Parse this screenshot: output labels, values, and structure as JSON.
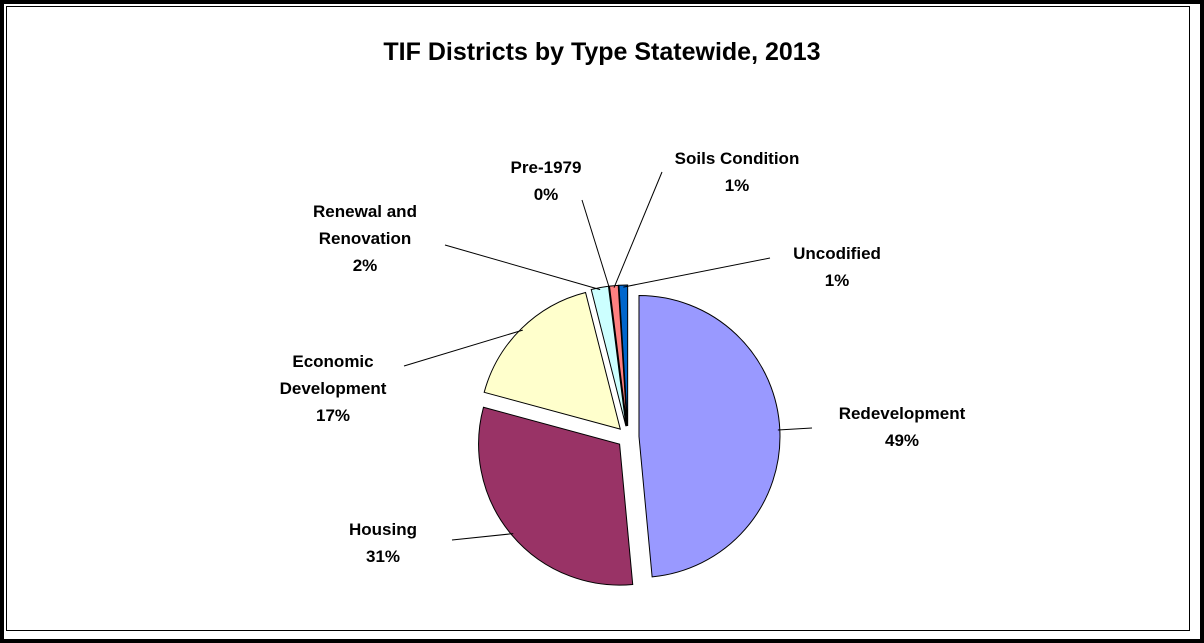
{
  "chart_data": {
    "type": "pie",
    "title": "TIF Districts by Type Statewide, 2013",
    "categories": [
      "Redevelopment",
      "Housing",
      "Economic Development",
      "Renewal and Renovation",
      "Pre-1979",
      "Soils Condition",
      "Uncodified"
    ],
    "values": [
      49,
      31,
      17,
      2,
      0,
      1,
      1
    ],
    "value_labels": [
      "49%",
      "31%",
      "17%",
      "2%",
      "0%",
      "1%",
      "1%"
    ],
    "colors": [
      "#9999ff",
      "#993366",
      "#ffffcc",
      "#ccffff",
      "#660066",
      "#ff8080",
      "#0066cc"
    ],
    "exploded": true
  }
}
